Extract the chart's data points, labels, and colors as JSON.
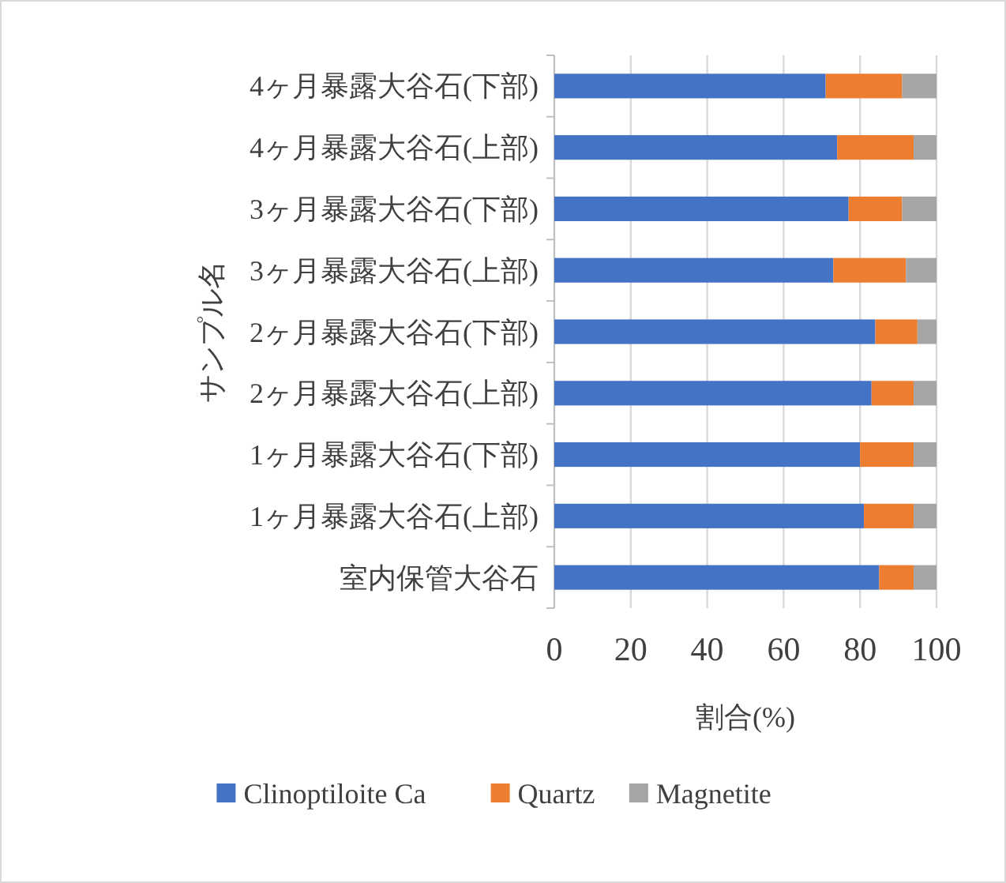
{
  "chart_data": {
    "type": "bar",
    "orientation": "horizontal",
    "stacked": true,
    "xlabel": "割合(%)",
    "ylabel": "サンプル名",
    "categories": [
      "4ヶ月暴露大谷石(下部)",
      "4ヶ月暴露大谷石(上部)",
      "3ヶ月暴露大谷石(下部)",
      "3ヶ月暴露大谷石(上部)",
      "2ヶ月暴露大谷石(下部)",
      "2ヶ月暴露大谷石(上部)",
      "1ヶ月暴露大谷石(下部)",
      "1ヶ月暴露大谷石(上部)",
      "室内保管大谷石"
    ],
    "series": [
      {
        "name": "Clinoptiloite Ca",
        "color": "#4472c4",
        "values": [
          71,
          74,
          77,
          73,
          84,
          83,
          80,
          81,
          85
        ]
      },
      {
        "name": "Quartz",
        "color": "#ed7d31",
        "values": [
          20,
          20,
          14,
          19,
          11,
          11,
          14,
          13,
          9
        ]
      },
      {
        "name": "Magnetite",
        "color": "#a5a5a5",
        "values": [
          9,
          6,
          9,
          8,
          5,
          6,
          6,
          6,
          6
        ]
      }
    ],
    "xlim": [
      0,
      100
    ],
    "xticks": [
      0,
      20,
      40,
      60,
      80,
      100
    ],
    "grid": "x",
    "legend": "bottom"
  }
}
